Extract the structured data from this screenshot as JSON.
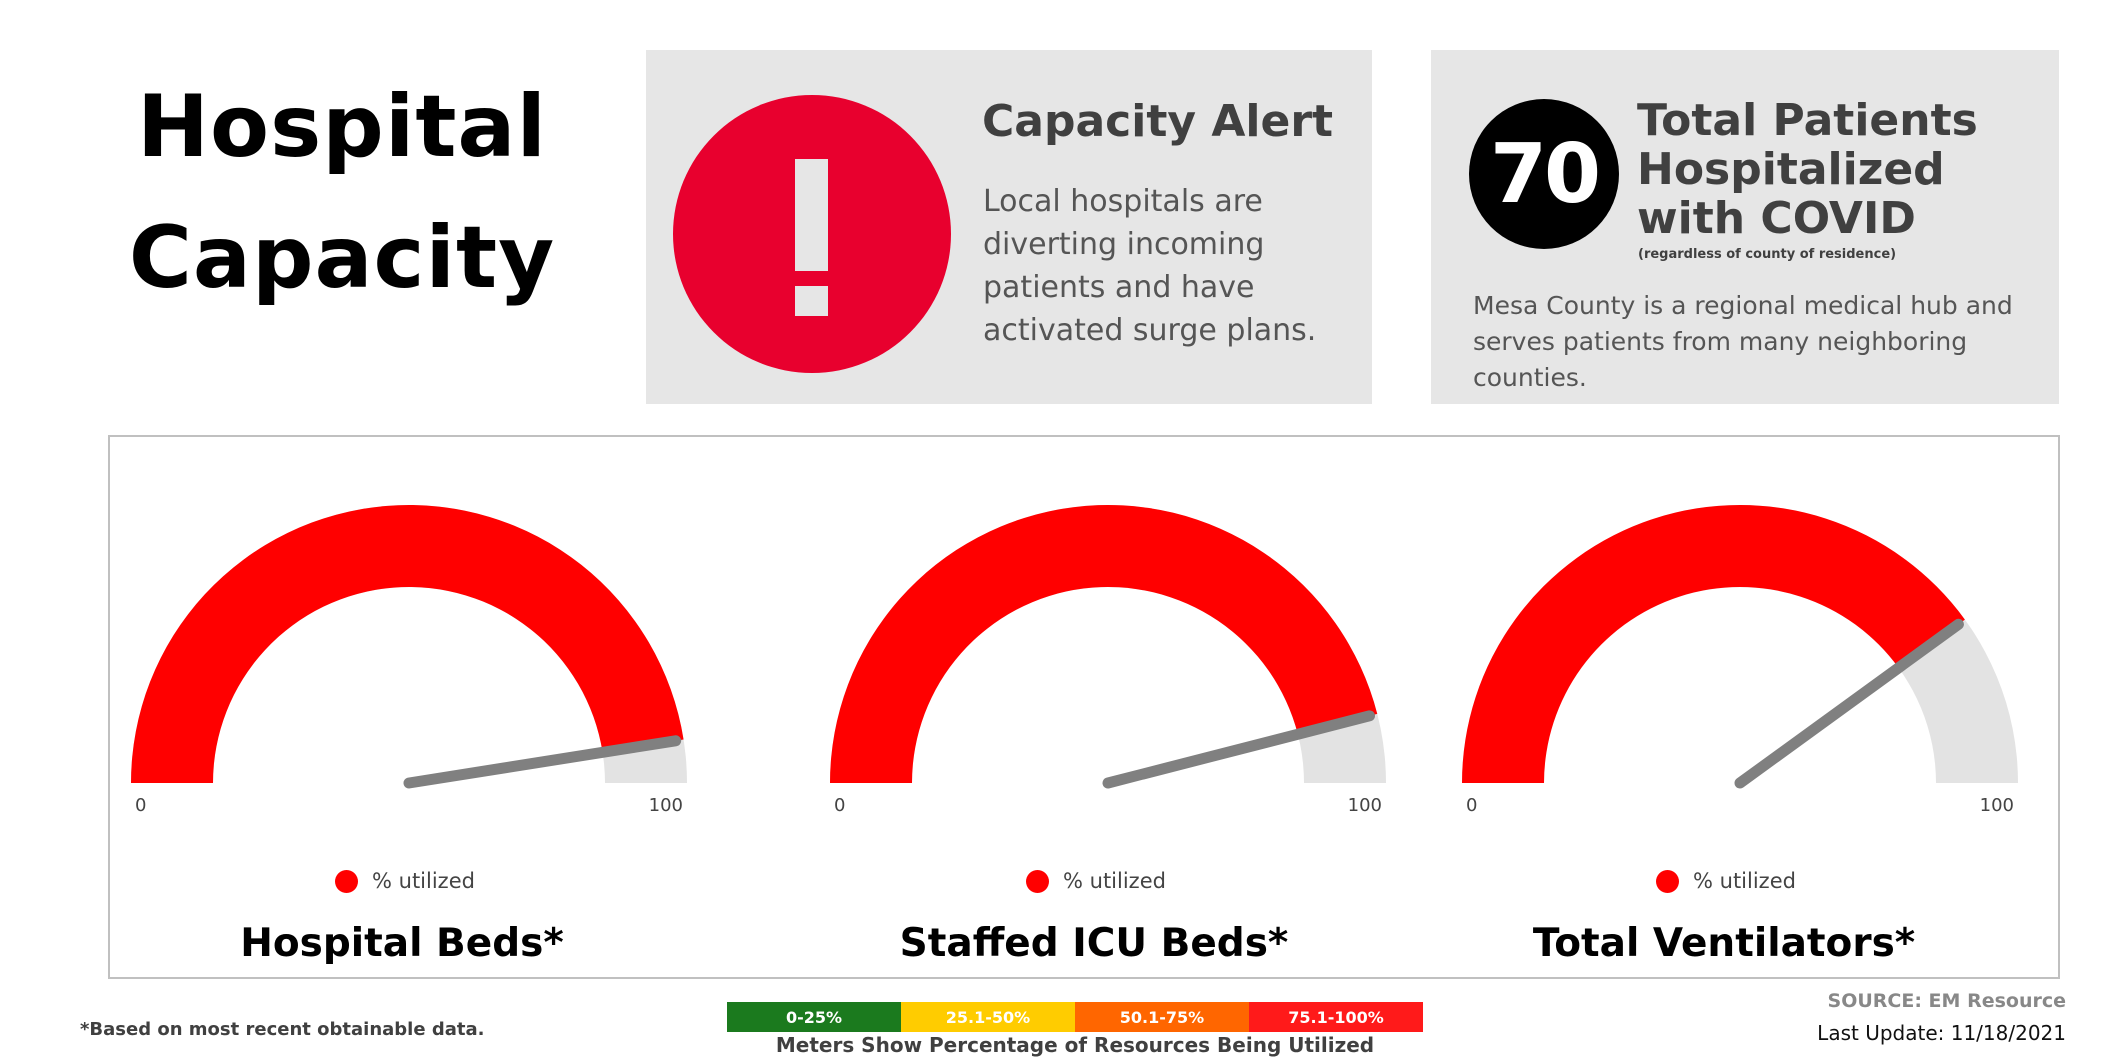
{
  "header": {
    "title_line1": "Hospital",
    "title_line2": "Capacity"
  },
  "alert": {
    "icon": "exclamation-icon",
    "title": "Capacity Alert",
    "body": "Local hospitals are diverting incoming patients and have activated surge plans.",
    "color": "#e8002e"
  },
  "patients": {
    "count": "70",
    "title": "Total Patients Hospitalized with COVID",
    "note": "(regardless of county of residence)",
    "body": "Mesa County is a regional medical hub and serves patients from many neighboring counties."
  },
  "chart_data": [
    {
      "type": "gauge",
      "title": "Hospital Beds*",
      "min": 0,
      "max": 100,
      "min_label": "0",
      "max_label": "100",
      "value": 95,
      "legend": "% utilized",
      "color": "#ff0000"
    },
    {
      "type": "gauge",
      "title": "Staffed ICU Beds*",
      "min": 0,
      "max": 100,
      "min_label": "0",
      "max_label": "100",
      "value": 92,
      "legend": "% utilized",
      "color": "#ff0000"
    },
    {
      "type": "gauge",
      "title": "Total Ventilators*",
      "min": 0,
      "max": 100,
      "min_label": "0",
      "max_label": "100",
      "value": 80,
      "legend": "% utilized",
      "color": "#ff0000"
    }
  ],
  "footer": {
    "footnote": "*Based on most recent obtainable data.",
    "scale": [
      {
        "label": "0-25%",
        "color": "#1b7a1e"
      },
      {
        "label": "25.1-50%",
        "color": "#ffcc00"
      },
      {
        "label": "50.1-75%",
        "color": "#ff6600"
      },
      {
        "label": "75.1-100%",
        "color": "#ff1a1a"
      }
    ],
    "scale_caption": "Meters Show Percentage of Resources Being Utilized",
    "source": "SOURCE: EM Resource",
    "last_update": "Last Update: 11/18/2021"
  }
}
